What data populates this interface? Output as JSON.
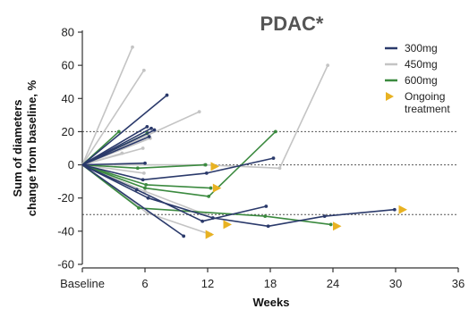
{
  "chart_data": {
    "type": "line",
    "title": "PDAC*",
    "xlabel": "Weeks",
    "ylabel_lines": [
      "Sum of diameters",
      "change from baseline, %"
    ],
    "xlim": [
      0,
      36
    ],
    "ylim": [
      -60,
      80
    ],
    "x_ticks": [
      {
        "value": 0,
        "label": "Baseline"
      },
      {
        "value": 6,
        "label": "6"
      },
      {
        "value": 12,
        "label": "12"
      },
      {
        "value": 18,
        "label": "18"
      },
      {
        "value": 24,
        "label": "24"
      },
      {
        "value": 30,
        "label": "30"
      },
      {
        "value": 36,
        "label": "36"
      }
    ],
    "y_ticks": [
      {
        "value": 80,
        "label": "80"
      },
      {
        "value": 60,
        "label": "60"
      },
      {
        "value": 40,
        "label": "40"
      },
      {
        "value": 20,
        "label": "20"
      },
      {
        "value": 0,
        "label": "0"
      },
      {
        "value": -20,
        "label": "-20"
      },
      {
        "value": -40,
        "label": "-40"
      },
      {
        "value": -60,
        "label": "-60"
      }
    ],
    "reference_lines": [
      20,
      0,
      -30
    ],
    "colors": {
      "300mg": "#2b3a6b",
      "450mg": "#c4c4c4",
      "600mg": "#3b8a3f",
      "ongoing": "#e8b222"
    },
    "legend": {
      "placement": "top-right",
      "entries": [
        {
          "name": "300mg",
          "marker": "line",
          "color": "#2b3a6b"
        },
        {
          "name": "450mg",
          "marker": "line",
          "color": "#c4c4c4"
        },
        {
          "name": "600mg",
          "marker": "line",
          "color": "#3b8a3f"
        },
        {
          "name": "Ongoing treatment",
          "lines": [
            "Ongoing",
            "treatment"
          ],
          "marker": "triangle",
          "color": "#e8b222"
        }
      ]
    },
    "series": [
      {
        "group": "450mg",
        "x": [
          0,
          4.8
        ],
        "y": [
          0,
          71
        ]
      },
      {
        "group": "450mg",
        "x": [
          0,
          5.9
        ],
        "y": [
          0,
          57
        ]
      },
      {
        "group": "450mg",
        "x": [
          0,
          11.2
        ],
        "y": [
          0,
          32
        ]
      },
      {
        "group": "450mg",
        "x": [
          0,
          5.8
        ],
        "y": [
          0,
          10
        ]
      },
      {
        "group": "450mg",
        "x": [
          0,
          6.5
        ],
        "y": [
          0,
          16
        ]
      },
      {
        "group": "450mg",
        "x": [
          0,
          3.8
        ],
        "y": [
          0,
          7
        ]
      },
      {
        "group": "450mg",
        "x": [
          0,
          5.9
        ],
        "y": [
          0,
          -5
        ]
      },
      {
        "group": "450mg",
        "x": [
          0,
          6.0,
          11.8
        ],
        "y": [
          0,
          -16,
          -30
        ]
      },
      {
        "group": "450mg",
        "x": [
          0,
          6.2,
          12.3
        ],
        "y": [
          0,
          -29,
          -42
        ]
      },
      {
        "group": "450mg",
        "x": [
          0,
          11.7,
          18.9,
          23.5
        ],
        "y": [
          0,
          0,
          -2,
          60
        ]
      },
      {
        "group": "300mg",
        "x": [
          0,
          8.1
        ],
        "y": [
          0,
          42
        ]
      },
      {
        "group": "300mg",
        "x": [
          0,
          6.6
        ],
        "y": [
          0,
          22
        ]
      },
      {
        "group": "300mg",
        "x": [
          0,
          6.2
        ],
        "y": [
          0,
          23
        ]
      },
      {
        "group": "300mg",
        "x": [
          0,
          6.9
        ],
        "y": [
          0,
          21
        ]
      },
      {
        "group": "300mg",
        "x": [
          0,
          6.4
        ],
        "y": [
          0,
          17
        ]
      },
      {
        "group": "300mg",
        "x": [
          0,
          6.0
        ],
        "y": [
          0,
          1
        ]
      },
      {
        "group": "300mg",
        "x": [
          0,
          5.8,
          11.9,
          18.3
        ],
        "y": [
          0,
          -9,
          -5,
          4
        ]
      },
      {
        "group": "300mg",
        "x": [
          0,
          9.7
        ],
        "y": [
          0,
          -43
        ]
      },
      {
        "group": "300mg",
        "x": [
          0,
          5.2,
          11.5,
          17.6
        ],
        "y": [
          0,
          -15,
          -34,
          -25
        ]
      },
      {
        "group": "300mg",
        "x": [
          0,
          6.3,
          12.5,
          17.8,
          23.2,
          29.9
        ],
        "y": [
          0,
          -20,
          -32,
          -37,
          -31,
          -27
        ]
      },
      {
        "group": "600mg",
        "x": [
          0,
          3.5
        ],
        "y": [
          0,
          20
        ]
      },
      {
        "group": "600mg",
        "x": [
          0,
          6.2
        ],
        "y": [
          0,
          19
        ]
      },
      {
        "group": "600mg",
        "x": [
          0,
          5.3,
          11.8
        ],
        "y": [
          0,
          -2,
          0
        ]
      },
      {
        "group": "600mg",
        "x": [
          0,
          6.0,
          12.1,
          18.5
        ],
        "y": [
          0,
          -14,
          -19,
          20
        ]
      },
      {
        "group": "600mg",
        "x": [
          0,
          6.1,
          12.3
        ],
        "y": [
          0,
          -12,
          -14
        ]
      },
      {
        "group": "600mg",
        "x": [
          0,
          5.4,
          17.5,
          23.8
        ],
        "y": [
          0,
          -26,
          -31,
          -36
        ]
      }
    ],
    "ongoing_markers": [
      {
        "x": 12.6,
        "y": -1
      },
      {
        "x": 12.8,
        "y": -14
      },
      {
        "x": 12.1,
        "y": -42
      },
      {
        "x": 13.8,
        "y": -36
      },
      {
        "x": 24.3,
        "y": -37
      },
      {
        "x": 30.6,
        "y": -27
      }
    ]
  }
}
